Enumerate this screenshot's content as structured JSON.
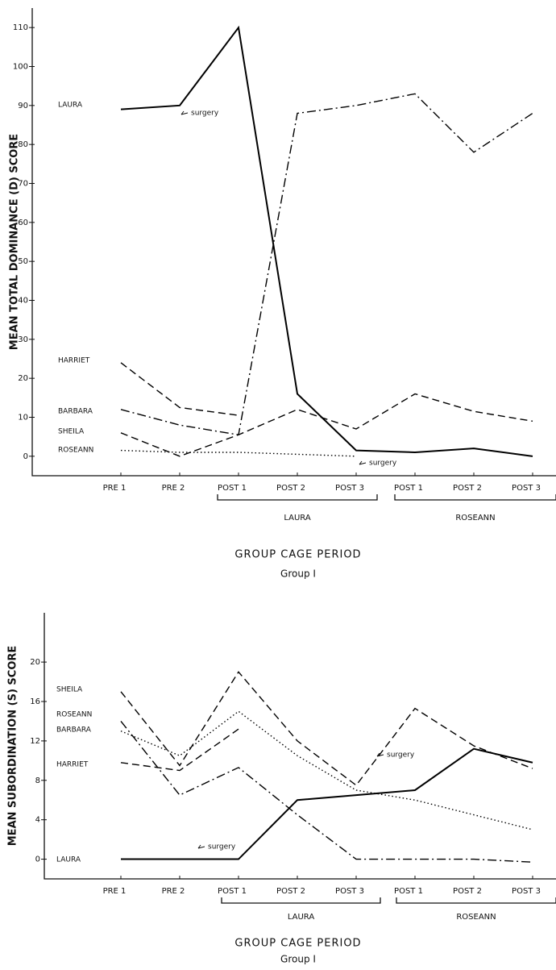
{
  "chart_data": [
    {
      "type": "line",
      "ylabel": "MEAN TOTAL DOMINANCE (D) SCORE",
      "xlabel": "GROUP CAGE PERIOD",
      "subtitle": "Group I",
      "categories": [
        "PRE 1",
        "PRE 2",
        "POST 1",
        "POST 2",
        "POST 3",
        "POST 1",
        "POST 2",
        "POST 3"
      ],
      "group_labels": [
        "LAURA",
        "ROSEANN"
      ],
      "ylim": [
        -5,
        115
      ],
      "yticks": [
        0,
        10,
        20,
        30,
        40,
        50,
        60,
        70,
        80,
        90,
        100,
        110
      ],
      "annotations": [
        "surgery",
        "surgery"
      ],
      "series": [
        {
          "name": "LAURA",
          "color": "#000000",
          "style": "solid",
          "values": [
            89,
            90,
            110,
            16,
            1.5,
            1,
            2,
            0
          ]
        },
        {
          "name": "HARRIET",
          "color": "#000000",
          "style": "dashed",
          "values": [
            24,
            12.5,
            10.5,
            null,
            null,
            null,
            null,
            null
          ]
        },
        {
          "name": "BARBARA",
          "color": "#000000",
          "style": "dashdot",
          "values": [
            12,
            8,
            5.5,
            88,
            90,
            93,
            78,
            88
          ]
        },
        {
          "name": "SHEILA",
          "color": "#000000",
          "style": "dashed",
          "values": [
            6,
            0,
            5.5,
            12,
            7,
            16,
            11.5,
            9
          ]
        },
        {
          "name": "ROSEANN",
          "color": "#000000",
          "style": "dotted",
          "values": [
            1.5,
            1,
            1,
            0.5,
            0,
            null,
            null,
            null
          ]
        }
      ]
    },
    {
      "type": "line",
      "ylabel": "MEAN SUBORDINATION (S) SCORE",
      "xlabel": "GROUP CAGE PERIOD",
      "subtitle": "Group I",
      "categories": [
        "PRE 1",
        "PRE 2",
        "POST 1",
        "POST 2",
        "POST 3",
        "POST 1",
        "POST 2",
        "POST 3"
      ],
      "group_labels": [
        "LAURA",
        "ROSEANN"
      ],
      "ylim": [
        -2,
        25
      ],
      "yticks": [
        0,
        4,
        8,
        12,
        16,
        20
      ],
      "annotations": [
        "surgery",
        "surgery"
      ],
      "series": [
        {
          "name": "SHEILA",
          "color": "#000000",
          "style": "dashed",
          "values": [
            17,
            9.5,
            19,
            12,
            7.5,
            15.3,
            11.5,
            9.2
          ]
        },
        {
          "name": "ROSEANN",
          "color": "#000000",
          "style": "dotted",
          "values": [
            13,
            10.5,
            15,
            10.5,
            7,
            6,
            4.5,
            3
          ]
        },
        {
          "name": "BARBARA",
          "color": "#000000",
          "style": "dashdot",
          "values": [
            14,
            6.5,
            9.3,
            4.5,
            0,
            0,
            0,
            -0.3
          ]
        },
        {
          "name": "HARRIET",
          "color": "#000000",
          "style": "dashed",
          "values": [
            9.8,
            9,
            13.2,
            null,
            null,
            null,
            null,
            null
          ]
        },
        {
          "name": "LAURA",
          "color": "#000000",
          "style": "solid",
          "values": [
            0,
            0,
            0,
            6,
            6.5,
            7,
            11.2,
            9.8
          ]
        }
      ]
    }
  ]
}
